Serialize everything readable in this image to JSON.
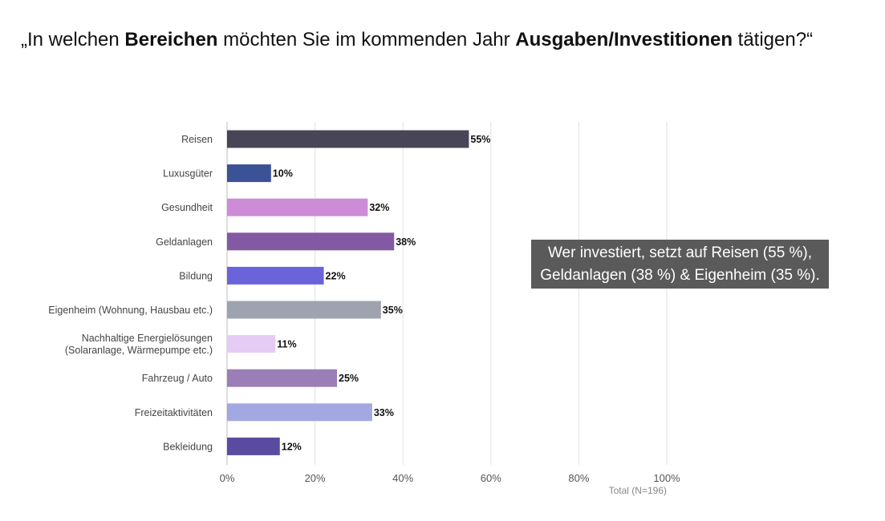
{
  "title": {
    "part1": "„In welchen ",
    "bold1": "Bereichen",
    "part2": " möchten Sie im kommenden Jahr ",
    "bold2": "Ausgaben/Investitionen",
    "part3": " tätigen?“"
  },
  "callout": {
    "line1": "Wer investiert, setzt auf Reisen (55 %),",
    "line2": "Geldanlagen (38 %) & Eigenheim (35 %)."
  },
  "chart_data": {
    "type": "bar",
    "orientation": "horizontal",
    "categories": [
      [
        "Reisen"
      ],
      [
        "Luxusgüter"
      ],
      [
        "Gesundheit"
      ],
      [
        "Geldanlagen"
      ],
      [
        "Bildung"
      ],
      [
        "Eigenheim (Wohnung, Hausbau etc.)"
      ],
      [
        "Nachhaltige Energielösungen",
        "(Solaranlage, Wärmepumpe etc.)"
      ],
      [
        "Fahrzeug / Auto"
      ],
      [
        "Freizeitaktivitäten"
      ],
      [
        "Bekleidung"
      ]
    ],
    "values": [
      55,
      10,
      32,
      38,
      22,
      35,
      11,
      25,
      33,
      12
    ],
    "value_labels": [
      "55%",
      "10%",
      "32%",
      "38%",
      "22%",
      "35%",
      "11%",
      "25%",
      "33%",
      "12%"
    ],
    "colors": [
      "#474556",
      "#3c5296",
      "#cc8dd6",
      "#8459a3",
      "#6b63d9",
      "#9ea3af",
      "#e4ccf5",
      "#9b7db8",
      "#a3a8e0",
      "#5a4aa0"
    ],
    "xticks": [
      0,
      20,
      40,
      60,
      80,
      100
    ],
    "xtick_labels": [
      "0%",
      "20%",
      "40%",
      "60%",
      "80%",
      "100%"
    ],
    "xlim": [
      0,
      100
    ],
    "grid": true,
    "total_label": "Total (N=196)"
  }
}
